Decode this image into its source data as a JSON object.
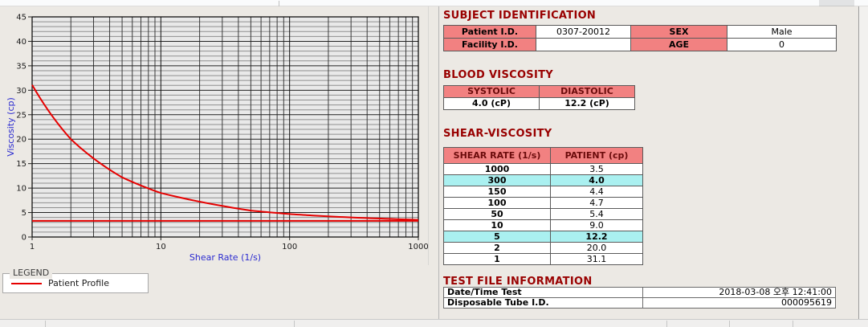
{
  "chart_data": {
    "type": "line",
    "title": "",
    "xlabel": "Shear Rate (1/s)",
    "ylabel": "Viscosity (cp)",
    "x_scale": "log",
    "xlim": [
      1,
      1000
    ],
    "ylim": [
      0,
      45
    ],
    "x_ticks": [
      1,
      10,
      100,
      1000
    ],
    "y_ticks": [
      0,
      5,
      10,
      15,
      20,
      25,
      30,
      35,
      40,
      45
    ],
    "grid": "on",
    "series": [
      {
        "name": "Patient Profile",
        "color": "#e60000",
        "x": [
          1,
          2,
          5,
          10,
          50,
          100,
          150,
          300,
          1000
        ],
        "y": [
          31.1,
          20.0,
          12.2,
          9.0,
          5.4,
          4.7,
          4.4,
          4.0,
          3.5
        ]
      }
    ],
    "reference_line_y": 3.3,
    "legend": {
      "group_label": "LEGEND",
      "entries": [
        "Patient Profile"
      ],
      "position": "below-chart"
    }
  },
  "subject_identification": {
    "title": "SUBJECT IDENTIFICATION",
    "rows": [
      {
        "label1": "Patient I.D.",
        "value1": "0307-20012",
        "label2": "SEX",
        "value2": "Male"
      },
      {
        "label1": "Facility I.D.",
        "value1": "",
        "label2": "AGE",
        "value2": "0"
      }
    ]
  },
  "blood_viscosity": {
    "title": "BLOOD VISCOSITY",
    "headers": [
      "SYSTOLIC",
      "DIASTOLIC"
    ],
    "values": [
      "4.0 (cP)",
      "12.2 (cP)"
    ]
  },
  "shear_viscosity": {
    "title": "SHEAR-VISCOSITY",
    "headers": [
      "SHEAR RATE (1/s)",
      "PATIENT (cp)"
    ],
    "rows": [
      {
        "rate": "1000",
        "patient": "3.5",
        "highlight": false
      },
      {
        "rate": "300",
        "patient": "4.0",
        "highlight": true
      },
      {
        "rate": "150",
        "patient": "4.4",
        "highlight": false
      },
      {
        "rate": "100",
        "patient": "4.7",
        "highlight": false
      },
      {
        "rate": "50",
        "patient": "5.4",
        "highlight": false
      },
      {
        "rate": "10",
        "patient": "9.0",
        "highlight": false
      },
      {
        "rate": "5",
        "patient": "12.2",
        "highlight": true
      },
      {
        "rate": "2",
        "patient": "20.0",
        "highlight": false
      },
      {
        "rate": "1",
        "patient": "31.1",
        "highlight": false
      }
    ]
  },
  "test_file_information": {
    "title": "TEST FILE INFORMATION",
    "rows": [
      {
        "label": "Date/Time Test",
        "value": "2018-03-08  오후 12:41:00"
      },
      {
        "label": "Disposable Tube I.D.",
        "value": "000095619"
      }
    ]
  },
  "colors": {
    "accent_red_curve": "#e60000",
    "table_header_bg": "#f28181",
    "highlight_row_bg": "#aaf0f0",
    "section_title": "#990000",
    "axis_title_blue": "#2b2bd0",
    "plot_bg": "#e9e9e9",
    "grid_minor": "#8f8f8f",
    "grid_major": "#222222",
    "grid_x": "#3a3a3a"
  }
}
